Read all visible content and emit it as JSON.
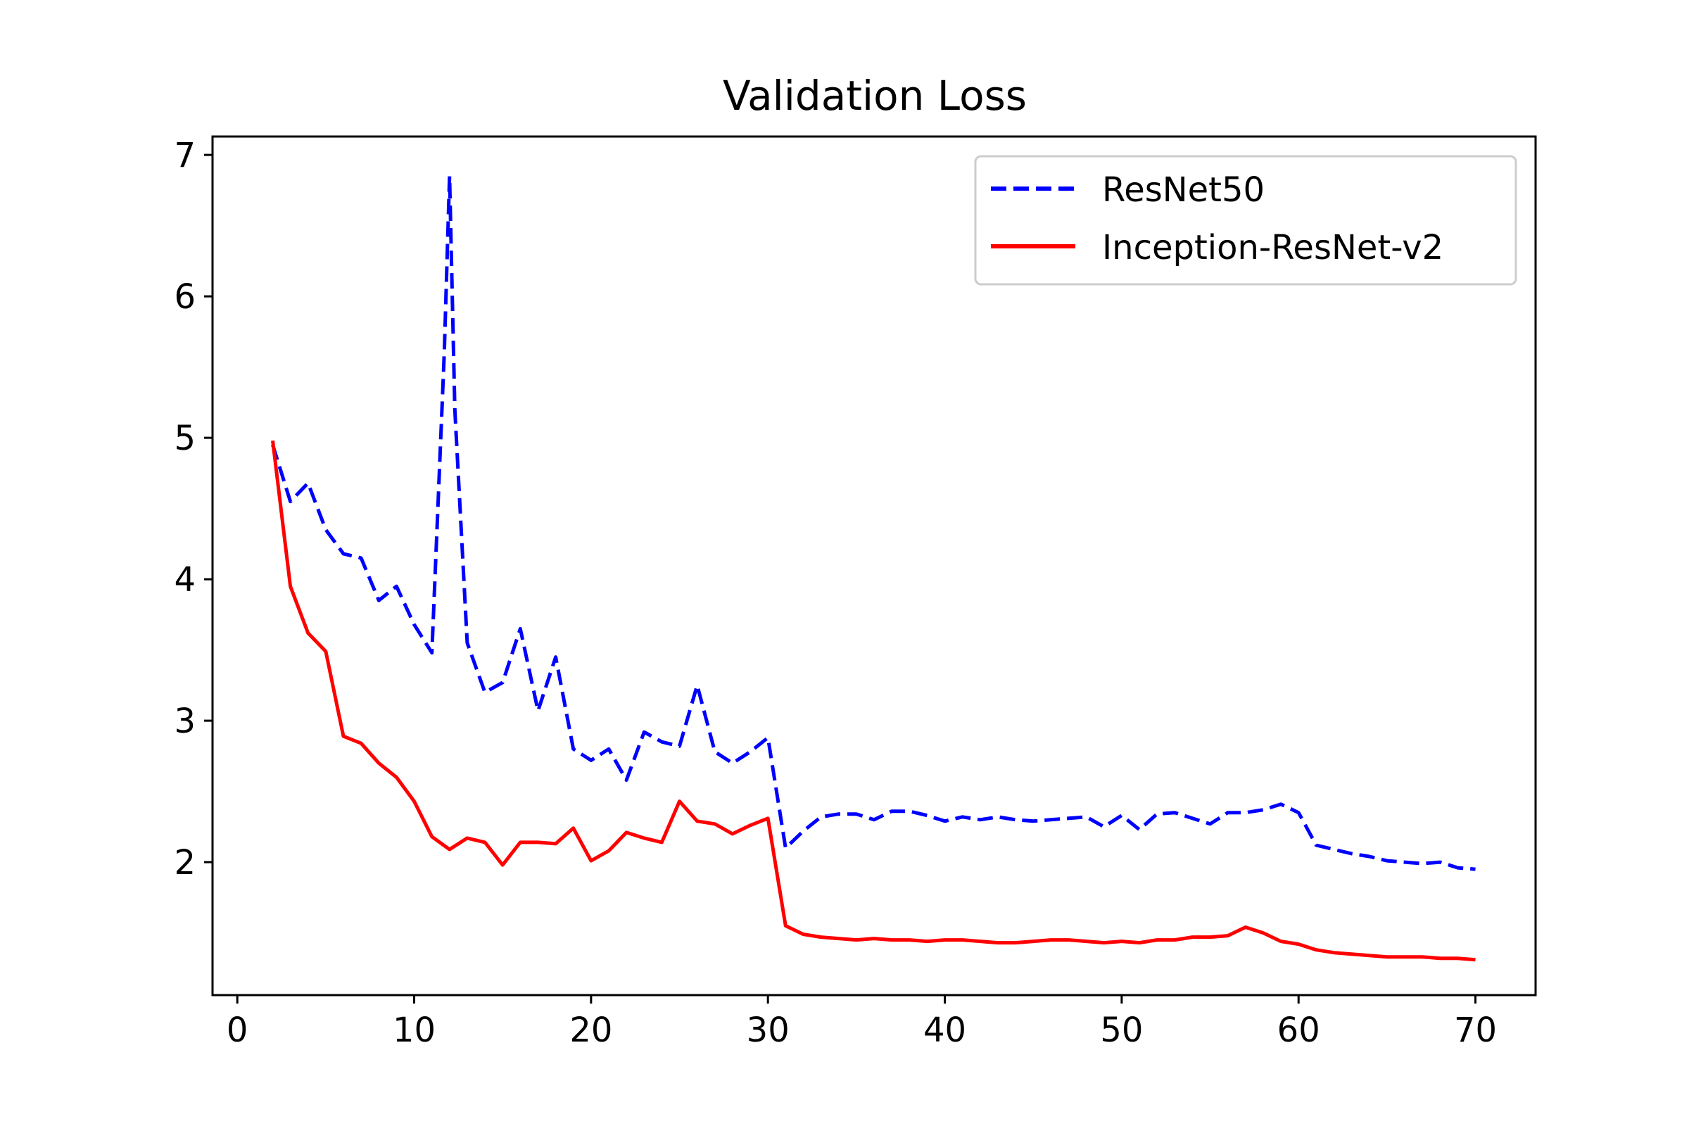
{
  "chart_data": {
    "type": "line",
    "title": "Validation Loss",
    "xlabel": "",
    "ylabel": "",
    "xlim": [
      -1.4,
      73.4
    ],
    "ylim": [
      1.06,
      7.13
    ],
    "xticks": [
      0,
      10,
      20,
      30,
      40,
      50,
      60,
      70
    ],
    "yticks": [
      2,
      3,
      4,
      5,
      6,
      7
    ],
    "legend_position": "top-right",
    "grid": false,
    "series": [
      {
        "name": "ResNet50",
        "color": "#0000ff",
        "style": "dashed",
        "x": [
          2,
          3,
          4,
          5,
          6,
          7,
          8,
          9,
          10,
          11,
          11.7,
          12,
          12.3,
          13,
          14,
          15,
          16,
          17,
          18,
          19,
          20,
          21,
          22,
          23,
          24,
          25,
          26,
          27,
          28,
          29,
          30,
          31,
          32,
          33,
          34,
          35,
          36,
          37,
          38,
          39,
          40,
          41,
          42,
          43,
          44,
          45,
          46,
          47,
          48,
          49,
          50,
          51,
          52,
          53,
          54,
          55,
          56,
          57,
          58,
          59,
          60,
          61,
          62,
          63,
          64,
          65,
          66,
          67,
          68,
          69,
          70
        ],
        "y": [
          4.95,
          4.55,
          4.68,
          4.35,
          4.18,
          4.15,
          3.85,
          3.95,
          3.68,
          3.48,
          5.6,
          6.85,
          5.2,
          3.55,
          3.2,
          3.27,
          3.65,
          3.07,
          3.45,
          2.8,
          2.72,
          2.8,
          2.58,
          2.92,
          2.85,
          2.82,
          3.25,
          2.78,
          2.7,
          2.78,
          2.88,
          2.1,
          2.22,
          2.32,
          2.34,
          2.34,
          2.3,
          2.36,
          2.36,
          2.33,
          2.29,
          2.32,
          2.3,
          2.32,
          2.3,
          2.29,
          2.3,
          2.31,
          2.32,
          2.25,
          2.33,
          2.23,
          2.34,
          2.35,
          2.31,
          2.27,
          2.35,
          2.35,
          2.37,
          2.41,
          2.35,
          2.12,
          2.09,
          2.06,
          2.04,
          2.01,
          2.0,
          1.99,
          2.0,
          1.96,
          1.95
        ]
      },
      {
        "name": "Inception-ResNet-v2",
        "color": "#ff0000",
        "style": "solid",
        "x": [
          2,
          3,
          4,
          5,
          6,
          7,
          8,
          9,
          10,
          11,
          12,
          13,
          14,
          15,
          16,
          17,
          18,
          19,
          20,
          21,
          22,
          23,
          24,
          25,
          26,
          27,
          28,
          29,
          30,
          31,
          32,
          33,
          34,
          35,
          36,
          37,
          38,
          39,
          40,
          41,
          42,
          43,
          44,
          45,
          46,
          47,
          48,
          49,
          50,
          51,
          52,
          53,
          54,
          55,
          56,
          57,
          58,
          59,
          60,
          61,
          62,
          63,
          64,
          65,
          66,
          67,
          68,
          69,
          70
        ],
        "y": [
          4.98,
          3.95,
          3.62,
          3.49,
          2.89,
          2.84,
          2.7,
          2.6,
          2.43,
          2.18,
          2.09,
          2.17,
          2.14,
          1.98,
          2.14,
          2.14,
          2.13,
          2.24,
          2.01,
          2.08,
          2.21,
          2.17,
          2.14,
          2.43,
          2.29,
          2.27,
          2.2,
          2.26,
          2.31,
          1.55,
          1.49,
          1.47,
          1.46,
          1.45,
          1.46,
          1.45,
          1.45,
          1.44,
          1.45,
          1.45,
          1.44,
          1.43,
          1.43,
          1.44,
          1.45,
          1.45,
          1.44,
          1.43,
          1.44,
          1.43,
          1.45,
          1.45,
          1.47,
          1.47,
          1.48,
          1.54,
          1.5,
          1.44,
          1.42,
          1.38,
          1.36,
          1.35,
          1.34,
          1.33,
          1.33,
          1.33,
          1.32,
          1.32,
          1.31
        ]
      }
    ]
  }
}
